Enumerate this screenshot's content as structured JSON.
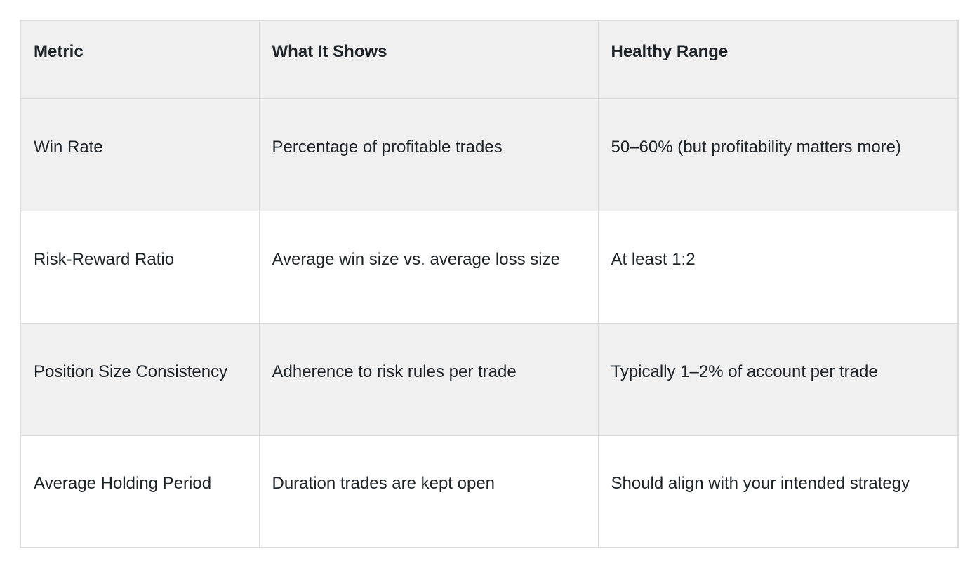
{
  "table": {
    "columns": [
      "Metric",
      "What It Shows",
      "Healthy Range"
    ],
    "rows": [
      {
        "metric": "Win Rate",
        "shows": "Percentage of profitable trades",
        "range": "50–60% (but profitability matters more)"
      },
      {
        "metric": "Risk-Reward Ratio",
        "shows": "Average win size vs. average loss size",
        "range": "At least 1:2"
      },
      {
        "metric": "Position Size Consistency",
        "shows": "Adherence to risk rules per trade",
        "range": "Typically 1–2% of account per trade"
      },
      {
        "metric": "Average Holding Period",
        "shows": "Duration trades are kept open",
        "range": "Should align with your intended strategy"
      }
    ],
    "colors": {
      "stripe_background": "#f0f0f1",
      "row_background": "#ffffff",
      "border": "#dcdcde",
      "text": "#1d2327"
    }
  }
}
